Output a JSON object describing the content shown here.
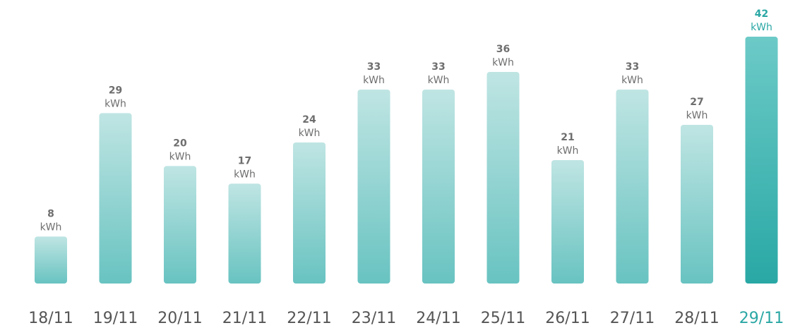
{
  "chart_data": {
    "type": "bar",
    "categories": [
      "18/11",
      "19/11",
      "20/11",
      "21/11",
      "22/11",
      "23/11",
      "24/11",
      "25/11",
      "26/11",
      "27/11",
      "28/11",
      "29/11"
    ],
    "values": [
      8,
      29,
      20,
      17,
      24,
      33,
      33,
      36,
      21,
      33,
      27,
      42
    ],
    "unit": "kWh",
    "highlighted_category": "29/11",
    "ylim": [
      0,
      42
    ],
    "grid": false,
    "title": "",
    "xlabel": "",
    "ylabel": "",
    "colors": {
      "bar_top": "#bfe5e3",
      "bar_bottom": "#68c3c1",
      "highlight_top": "#6ccac7",
      "highlight_bottom": "#29a8a5",
      "label_text": "#6e6e6e",
      "tick_text": "#555555",
      "highlight_text": "#2aa7a4"
    }
  }
}
